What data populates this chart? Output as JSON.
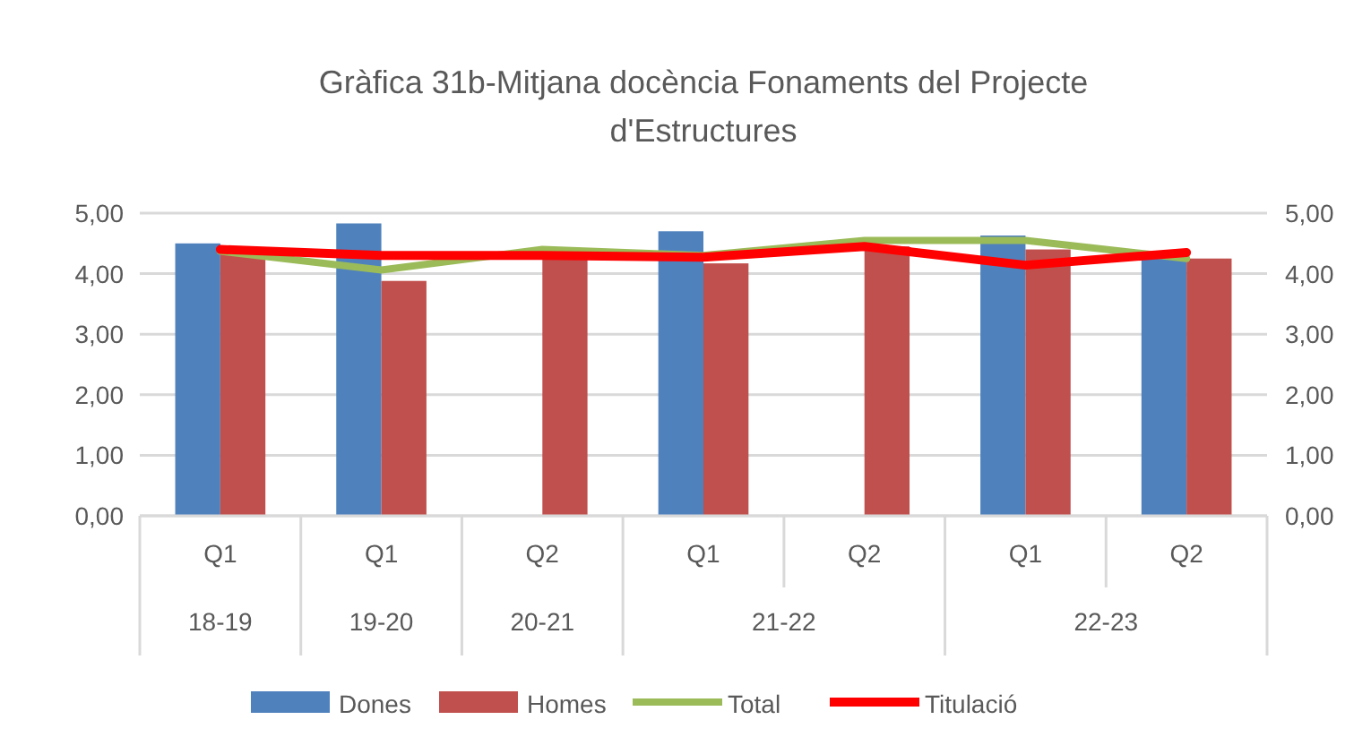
{
  "chart_data": {
    "type": "bar",
    "title": "Gràfica 31b-Mitjana docència Fonaments del Projecte d'Estructures",
    "categories": [
      "Q1",
      "Q1",
      "Q2",
      "Q1",
      "Q2",
      "Q1",
      "Q2"
    ],
    "annotations": [
      "18-19",
      "19-20",
      "20-21",
      "21-22",
      "22-23"
    ],
    "series": [
      {
        "name": "Dones",
        "color": "#4f81bd",
        "values": [
          4.5,
          4.83,
          null,
          4.7,
          null,
          4.63,
          4.25
        ]
      },
      {
        "name": "Homes",
        "color": "#c0504d",
        "values": [
          4.38,
          3.88,
          4.33,
          4.17,
          4.45,
          4.4,
          4.25
        ]
      },
      {
        "name": "Total",
        "type": "line",
        "color": "#9bbb59",
        "values": [
          4.37,
          4.06,
          4.4,
          4.3,
          4.55,
          4.55,
          4.25
        ]
      },
      {
        "name": "Titulació",
        "type": "line",
        "color": "#ff0000",
        "values": [
          4.4,
          4.3,
          4.3,
          4.27,
          4.45,
          4.14,
          4.35
        ]
      }
    ],
    "ylim": [
      0,
      5
    ],
    "yticks": [
      {
        "value": 0,
        "label": "0,00"
      },
      {
        "value": 1,
        "label": "1,00"
      },
      {
        "value": 2,
        "label": "2,00"
      },
      {
        "value": 3,
        "label": "3,00"
      },
      {
        "value": 4,
        "label": "4,00"
      },
      {
        "value": 5,
        "label": "5,00"
      }
    ],
    "y2lim": [
      0,
      5
    ],
    "y2ticks": [
      {
        "value": 0,
        "label": "0,00"
      },
      {
        "value": 1,
        "label": "1,00"
      },
      {
        "value": 2,
        "label": "2,00"
      },
      {
        "value": 3,
        "label": "3,00"
      },
      {
        "value": 4,
        "label": "4,00"
      },
      {
        "value": 5,
        "label": "5,00"
      }
    ],
    "grid": "y",
    "legend": "bottom",
    "marker": "none",
    "line_style": "solid"
  }
}
